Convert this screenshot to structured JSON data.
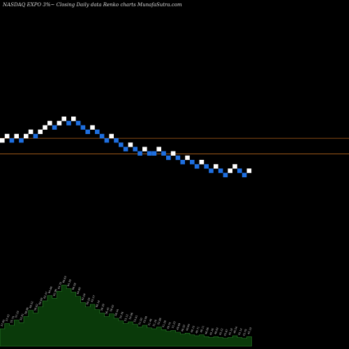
{
  "header": {
    "title": "NASDAQ EXPO 3%~  Closing Daily data  Renko  charts MunafaSutra.com"
  },
  "colors": {
    "background": "#000000",
    "up_brick": "#ffffff",
    "down_brick": "#1e6fe0",
    "ref_line": "#b5651d",
    "volume_fill": "#0a3a0a",
    "volume_edge": "#2e8b2e"
  },
  "chart_data": {
    "type": "renko",
    "reversal_pct": 3,
    "bricks": [
      {
        "i": 0,
        "level": 0,
        "dir": "up"
      },
      {
        "i": 1,
        "level": 1,
        "dir": "up"
      },
      {
        "i": 2,
        "level": 0,
        "dir": "down"
      },
      {
        "i": 3,
        "level": 1,
        "dir": "up"
      },
      {
        "i": 4,
        "level": 0,
        "dir": "down"
      },
      {
        "i": 5,
        "level": 1,
        "dir": "up"
      },
      {
        "i": 6,
        "level": 2,
        "dir": "up"
      },
      {
        "i": 7,
        "level": 1,
        "dir": "down"
      },
      {
        "i": 8,
        "level": 2,
        "dir": "up"
      },
      {
        "i": 9,
        "level": 3,
        "dir": "up"
      },
      {
        "i": 10,
        "level": 4,
        "dir": "up"
      },
      {
        "i": 11,
        "level": 3,
        "dir": "down"
      },
      {
        "i": 12,
        "level": 4,
        "dir": "up"
      },
      {
        "i": 13,
        "level": 5,
        "dir": "up"
      },
      {
        "i": 14,
        "level": 4,
        "dir": "down"
      },
      {
        "i": 15,
        "level": 5,
        "dir": "up"
      },
      {
        "i": 16,
        "level": 4,
        "dir": "down"
      },
      {
        "i": 17,
        "level": 3,
        "dir": "down"
      },
      {
        "i": 18,
        "level": 2,
        "dir": "down"
      },
      {
        "i": 19,
        "level": 3,
        "dir": "up"
      },
      {
        "i": 20,
        "level": 2,
        "dir": "down"
      },
      {
        "i": 21,
        "level": 1,
        "dir": "down"
      },
      {
        "i": 22,
        "level": 0,
        "dir": "down"
      },
      {
        "i": 23,
        "level": 1,
        "dir": "up"
      },
      {
        "i": 24,
        "level": 0,
        "dir": "down"
      },
      {
        "i": 25,
        "level": -1,
        "dir": "down"
      },
      {
        "i": 26,
        "level": -2,
        "dir": "down"
      },
      {
        "i": 27,
        "level": -1,
        "dir": "up"
      },
      {
        "i": 28,
        "level": -2,
        "dir": "down"
      },
      {
        "i": 29,
        "level": -3,
        "dir": "down"
      },
      {
        "i": 30,
        "level": -2,
        "dir": "up"
      },
      {
        "i": 31,
        "level": -3,
        "dir": "down"
      },
      {
        "i": 32,
        "level": -3,
        "dir": "down"
      },
      {
        "i": 33,
        "level": -2,
        "dir": "up"
      },
      {
        "i": 34,
        "level": -3,
        "dir": "down"
      },
      {
        "i": 35,
        "level": -4,
        "dir": "down"
      },
      {
        "i": 36,
        "level": -3,
        "dir": "up"
      },
      {
        "i": 37,
        "level": -4,
        "dir": "down"
      },
      {
        "i": 38,
        "level": -5,
        "dir": "down"
      },
      {
        "i": 39,
        "level": -4,
        "dir": "up"
      },
      {
        "i": 40,
        "level": -5,
        "dir": "down"
      },
      {
        "i": 41,
        "level": -6,
        "dir": "down"
      },
      {
        "i": 42,
        "level": -5,
        "dir": "up"
      },
      {
        "i": 43,
        "level": -6,
        "dir": "down"
      },
      {
        "i": 44,
        "level": -7,
        "dir": "down"
      },
      {
        "i": 45,
        "level": -6,
        "dir": "up"
      },
      {
        "i": 46,
        "level": -7,
        "dir": "down"
      },
      {
        "i": 47,
        "level": -8,
        "dir": "down"
      },
      {
        "i": 48,
        "level": -7,
        "dir": "up"
      },
      {
        "i": 49,
        "level": -6,
        "dir": "up"
      },
      {
        "i": 50,
        "level": -7,
        "dir": "down"
      },
      {
        "i": 51,
        "level": -8,
        "dir": "down"
      },
      {
        "i": 52,
        "level": -7,
        "dir": "up"
      }
    ],
    "reference_levels": [
      0.5,
      -3.1
    ],
    "volume": [
      {
        "i": 0,
        "v": 20,
        "label": "57.65"
      },
      {
        "i": 1,
        "v": 26,
        "label": "57.43"
      },
      {
        "i": 2,
        "v": 24,
        "label": "55.74"
      },
      {
        "i": 3,
        "v": 30,
        "label": "57.33"
      },
      {
        "i": 4,
        "v": 27,
        "label": "55.81"
      },
      {
        "i": 5,
        "v": 34,
        "label": "58.96"
      },
      {
        "i": 6,
        "v": 41,
        "label": "60.52"
      },
      {
        "i": 7,
        "v": 38,
        "label": "58.62"
      },
      {
        "i": 8,
        "v": 45,
        "label": "60.69"
      },
      {
        "i": 9,
        "v": 52,
        "label": "62.47"
      },
      {
        "i": 10,
        "v": 58,
        "label": "64.66"
      },
      {
        "i": 11,
        "v": 55,
        "label": "62.96"
      },
      {
        "i": 12,
        "v": 63,
        "label": "64.70"
      },
      {
        "i": 13,
        "v": 70,
        "label": "66.63"
      },
      {
        "i": 14,
        "v": 66,
        "label": "64.39"
      },
      {
        "i": 15,
        "v": 62,
        "label": "66.58"
      },
      {
        "i": 16,
        "v": 57,
        "label": "64.69"
      },
      {
        "i": 17,
        "v": 50,
        "label": "62.04"
      },
      {
        "i": 18,
        "v": 45,
        "label": "60.29"
      },
      {
        "i": 19,
        "v": 48,
        "label": "62.27"
      },
      {
        "i": 20,
        "v": 42,
        "label": "60.18"
      },
      {
        "i": 21,
        "v": 38,
        "label": "58.39"
      },
      {
        "i": 22,
        "v": 34,
        "label": "56.45"
      },
      {
        "i": 23,
        "v": 37,
        "label": "58.02"
      },
      {
        "i": 24,
        "v": 32,
        "label": "56.44"
      },
      {
        "i": 25,
        "v": 29,
        "label": "54.76"
      },
      {
        "i": 26,
        "v": 26,
        "label": "53.13"
      },
      {
        "i": 27,
        "v": 28,
        "label": "54.66"
      },
      {
        "i": 28,
        "v": 25,
        "label": "53.01"
      },
      {
        "i": 29,
        "v": 22,
        "label": "51.50"
      },
      {
        "i": 30,
        "v": 24,
        "label": "53.00"
      },
      {
        "i": 31,
        "v": 21,
        "label": "51.46"
      },
      {
        "i": 32,
        "v": 20,
        "label": "51.20"
      },
      {
        "i": 33,
        "v": 22,
        "label": "52.86"
      },
      {
        "i": 34,
        "v": 19,
        "label": "51.28"
      },
      {
        "i": 35,
        "v": 17,
        "label": "49.74"
      },
      {
        "i": 36,
        "v": 18,
        "label": "51.23"
      },
      {
        "i": 37,
        "v": 16,
        "label": "49.69"
      },
      {
        "i": 38,
        "v": 14,
        "label": "48.20"
      },
      {
        "i": 39,
        "v": 15,
        "label": "49.64"
      },
      {
        "i": 40,
        "v": 13,
        "label": "48.15"
      },
      {
        "i": 41,
        "v": 12,
        "label": "46.71"
      },
      {
        "i": 42,
        "v": 13,
        "label": "48.11"
      },
      {
        "i": 43,
        "v": 11,
        "label": "46.66"
      },
      {
        "i": 44,
        "v": 10,
        "label": "45.26"
      },
      {
        "i": 45,
        "v": 11,
        "label": "46.62"
      },
      {
        "i": 46,
        "v": 10,
        "label": "45.22"
      },
      {
        "i": 47,
        "v": 9,
        "label": "43.87"
      },
      {
        "i": 48,
        "v": 10,
        "label": "45.18"
      },
      {
        "i": 49,
        "v": 12,
        "label": "46.54"
      },
      {
        "i": 50,
        "v": 10,
        "label": "45.14"
      },
      {
        "i": 51,
        "v": 9,
        "label": "43.79"
      },
      {
        "i": 52,
        "v": 11,
        "label": "45.10"
      }
    ]
  }
}
